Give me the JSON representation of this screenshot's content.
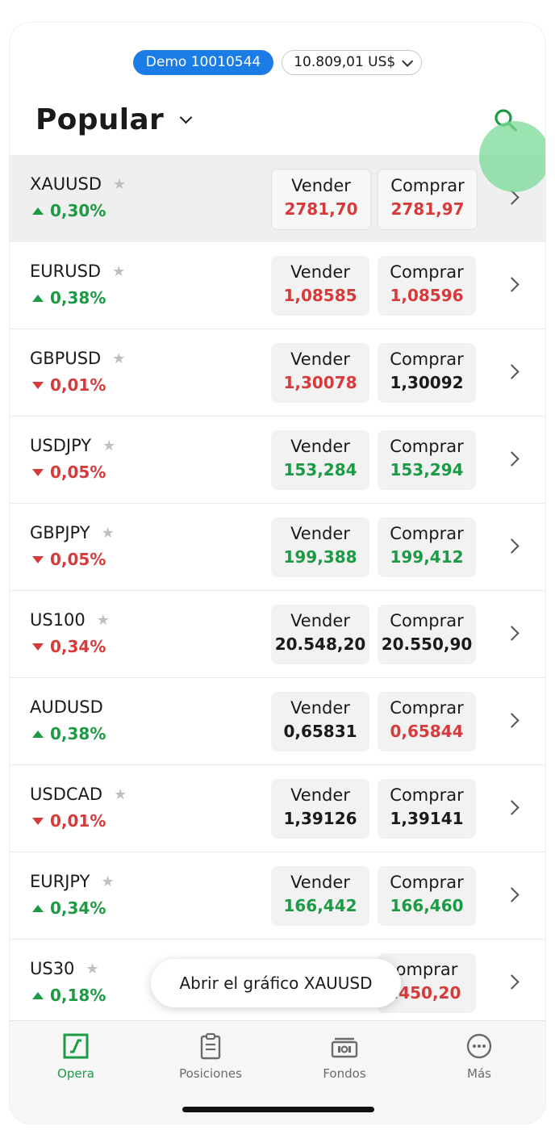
{
  "account": {
    "demo_label": "Demo 10010544",
    "balance_label": "10.809,01 US$"
  },
  "header": {
    "title": "Popular"
  },
  "instruments": [
    {
      "symbol": "XAUUSD",
      "star": true,
      "change": "0,30%",
      "direction": "up",
      "sell_label": "Vender",
      "sell_price": "2781,70",
      "sell_color": "red",
      "buy_label": "Comprar",
      "buy_price": "2781,97",
      "buy_color": "red",
      "selected": true
    },
    {
      "symbol": "EURUSD",
      "star": true,
      "change": "0,38%",
      "direction": "up",
      "sell_label": "Vender",
      "sell_price": "1,08585",
      "sell_color": "red",
      "buy_label": "Comprar",
      "buy_price": "1,08596",
      "buy_color": "red",
      "selected": false
    },
    {
      "symbol": "GBPUSD",
      "star": true,
      "change": "0,01%",
      "direction": "down",
      "sell_label": "Vender",
      "sell_price": "1,30078",
      "sell_color": "red",
      "buy_label": "Comprar",
      "buy_price": "1,30092",
      "buy_color": "dark",
      "selected": false
    },
    {
      "symbol": "USDJPY",
      "star": true,
      "change": "0,05%",
      "direction": "down",
      "sell_label": "Vender",
      "sell_price": "153,284",
      "sell_color": "green",
      "buy_label": "Comprar",
      "buy_price": "153,294",
      "buy_color": "green",
      "selected": false
    },
    {
      "symbol": "GBPJPY",
      "star": true,
      "change": "0,05%",
      "direction": "down",
      "sell_label": "Vender",
      "sell_price": "199,388",
      "sell_color": "green",
      "buy_label": "Comprar",
      "buy_price": "199,412",
      "buy_color": "green",
      "selected": false
    },
    {
      "symbol": "US100",
      "star": true,
      "change": "0,34%",
      "direction": "down",
      "sell_label": "Vender",
      "sell_price": "20.548,20",
      "sell_color": "dark",
      "buy_label": "Comprar",
      "buy_price": "20.550,90",
      "buy_color": "dark",
      "selected": false
    },
    {
      "symbol": "AUDUSD",
      "star": false,
      "change": "0,38%",
      "direction": "up",
      "sell_label": "Vender",
      "sell_price": "0,65831",
      "sell_color": "dark",
      "buy_label": "Comprar",
      "buy_price": "0,65844",
      "buy_color": "red",
      "selected": false
    },
    {
      "symbol": "USDCAD",
      "star": true,
      "change": "0,01%",
      "direction": "down",
      "sell_label": "Vender",
      "sell_price": "1,39126",
      "sell_color": "dark",
      "buy_label": "Comprar",
      "buy_price": "1,39141",
      "buy_color": "dark",
      "selected": false
    },
    {
      "symbol": "EURJPY",
      "star": true,
      "change": "0,34%",
      "direction": "up",
      "sell_label": "Vender",
      "sell_price": "166,442",
      "sell_color": "green",
      "buy_label": "Comprar",
      "buy_price": "166,460",
      "buy_color": "green",
      "selected": false
    },
    {
      "symbol": "US30",
      "star": true,
      "change": "0,18%",
      "direction": "up",
      "sell_label": "",
      "sell_price": "",
      "sell_color": "red",
      "buy_label": "omprar",
      "buy_price": ".450,20",
      "buy_color": "red",
      "selected": false,
      "partially_hidden": true
    }
  ],
  "toast": {
    "text": "Abrir el gráfico XAUUSD"
  },
  "tabbar": {
    "tabs": [
      {
        "label": "Opera",
        "icon": "chart-square-icon",
        "active": true
      },
      {
        "label": "Posiciones",
        "icon": "clipboard-icon",
        "active": false
      },
      {
        "label": "Fondos",
        "icon": "cash-icon",
        "active": false
      },
      {
        "label": "Más",
        "icon": "more-dots-icon",
        "active": false
      }
    ]
  },
  "colors": {
    "accent_green": "#1d9a45",
    "price_red": "#d63a3a",
    "demo_blue": "#1c7ce6",
    "tap_highlight": "#7ada96"
  }
}
